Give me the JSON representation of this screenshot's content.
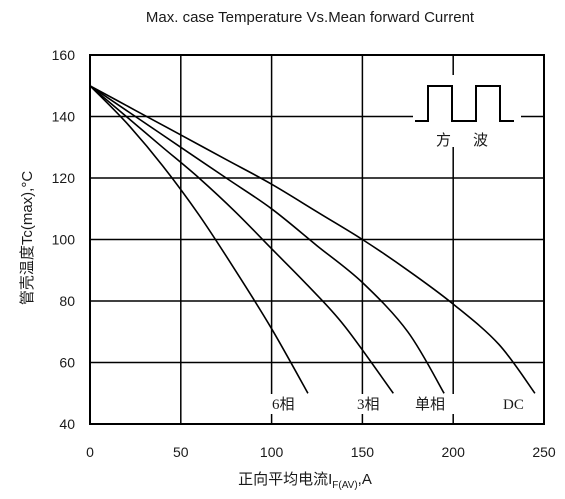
{
  "chart_data": {
    "type": "line",
    "title": "Max. case Temperature Vs.Mean forward Current",
    "xlabel": {
      "main": "正向平均电流I",
      "subscript": "F(AV)",
      "suffix": ",A"
    },
    "ylabel": "管壳温度Tc(max),°C",
    "xlim": [
      0,
      250
    ],
    "ylim": [
      40,
      160
    ],
    "x_ticks": [
      0,
      50,
      100,
      150,
      200,
      250
    ],
    "y_ticks": [
      40,
      60,
      80,
      100,
      120,
      140,
      160
    ],
    "grid": true,
    "inset": {
      "label_left": "方",
      "label_right": "波"
    },
    "series": [
      {
        "name": "6相",
        "x": [
          0,
          20,
          40,
          60,
          80,
          100,
          120
        ],
        "y": [
          150,
          138,
          124,
          108,
          90,
          71,
          50
        ]
      },
      {
        "name": "3相",
        "x": [
          0,
          20,
          40,
          60,
          80,
          100,
          120,
          140,
          167
        ],
        "y": [
          150,
          140,
          130,
          120,
          109,
          97,
          85,
          72,
          50
        ]
      },
      {
        "name": "单相",
        "x": [
          0,
          25,
          50,
          75,
          100,
          125,
          150,
          175,
          195
        ],
        "y": [
          150,
          140,
          130,
          120,
          110,
          98,
          86,
          70,
          50
        ]
      },
      {
        "name": "DC",
        "x": [
          0,
          25,
          50,
          75,
          100,
          125,
          150,
          175,
          200,
          225,
          245
        ],
        "y": [
          150,
          142,
          134,
          126,
          118,
          109,
          100,
          90,
          79,
          66,
          50
        ]
      }
    ]
  }
}
